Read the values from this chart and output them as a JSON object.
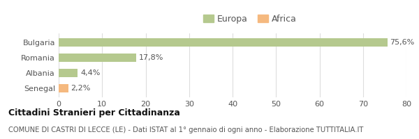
{
  "categories": [
    "Bulgaria",
    "Romania",
    "Albania",
    "Senegal"
  ],
  "values": [
    75.6,
    17.8,
    4.4,
    2.2
  ],
  "labels": [
    "75,6%",
    "17,8%",
    "4,4%",
    "2,2%"
  ],
  "bar_colors": [
    "#b5c98e",
    "#b5c98e",
    "#b5c98e",
    "#f5b97f"
  ],
  "europa_color": "#b5c98e",
  "africa_color": "#f5b97f",
  "xlim": [
    0,
    80
  ],
  "xticks": [
    0,
    10,
    20,
    30,
    40,
    50,
    60,
    70,
    80
  ],
  "legend_labels": [
    "Europa",
    "Africa"
  ],
  "title": "Cittadini Stranieri per Cittadinanza",
  "subtitle": "COMUNE DI CASTRI DI LECCE (LE) - Dati ISTAT al 1° gennaio di ogni anno - Elaborazione TUTTITALIA.IT",
  "title_fontsize": 9,
  "subtitle_fontsize": 7.2,
  "background_color": "#ffffff",
  "grid_color": "#dddddd",
  "bar_height": 0.52,
  "label_fontsize": 8,
  "tick_fontsize": 8,
  "legend_fontsize": 9
}
